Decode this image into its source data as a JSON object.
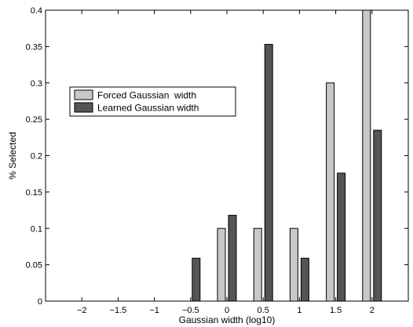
{
  "chart_data": {
    "type": "bar",
    "title": "",
    "xlabel": "Gaussian width (log10)",
    "ylabel": "% Selected",
    "categories": [
      "−2",
      "−1.5",
      "−1",
      "−0.5",
      "0",
      "0.5",
      "1",
      "1.5",
      "2"
    ],
    "x": [
      -2,
      -1.5,
      -1,
      -0.5,
      0,
      0.5,
      1,
      1.5,
      2
    ],
    "xlim": [
      -2.5,
      2.5
    ],
    "ylim": [
      0,
      0.4
    ],
    "yticks": [
      0,
      0.05,
      0.1,
      0.15,
      0.2,
      0.25,
      0.3,
      0.35,
      0.4
    ],
    "ytick_labels": [
      "0",
      "0.05",
      "0.1",
      "0.15",
      "0.2",
      "0.25",
      "0.3",
      "0.35",
      "0.4"
    ],
    "series": [
      {
        "name": "Forced Gaussian  width",
        "color": "#c8c8c8",
        "values": [
          0,
          0,
          0,
          0,
          0.1,
          0.1,
          0.1,
          0.3,
          0.4
        ]
      },
      {
        "name": "Learned Gaussian width",
        "color": "#555555",
        "values": [
          0,
          0,
          0,
          0.059,
          0.118,
          0.353,
          0.059,
          0.176,
          0.235
        ]
      }
    ],
    "legend_position": "upper-left",
    "grid": false
  }
}
